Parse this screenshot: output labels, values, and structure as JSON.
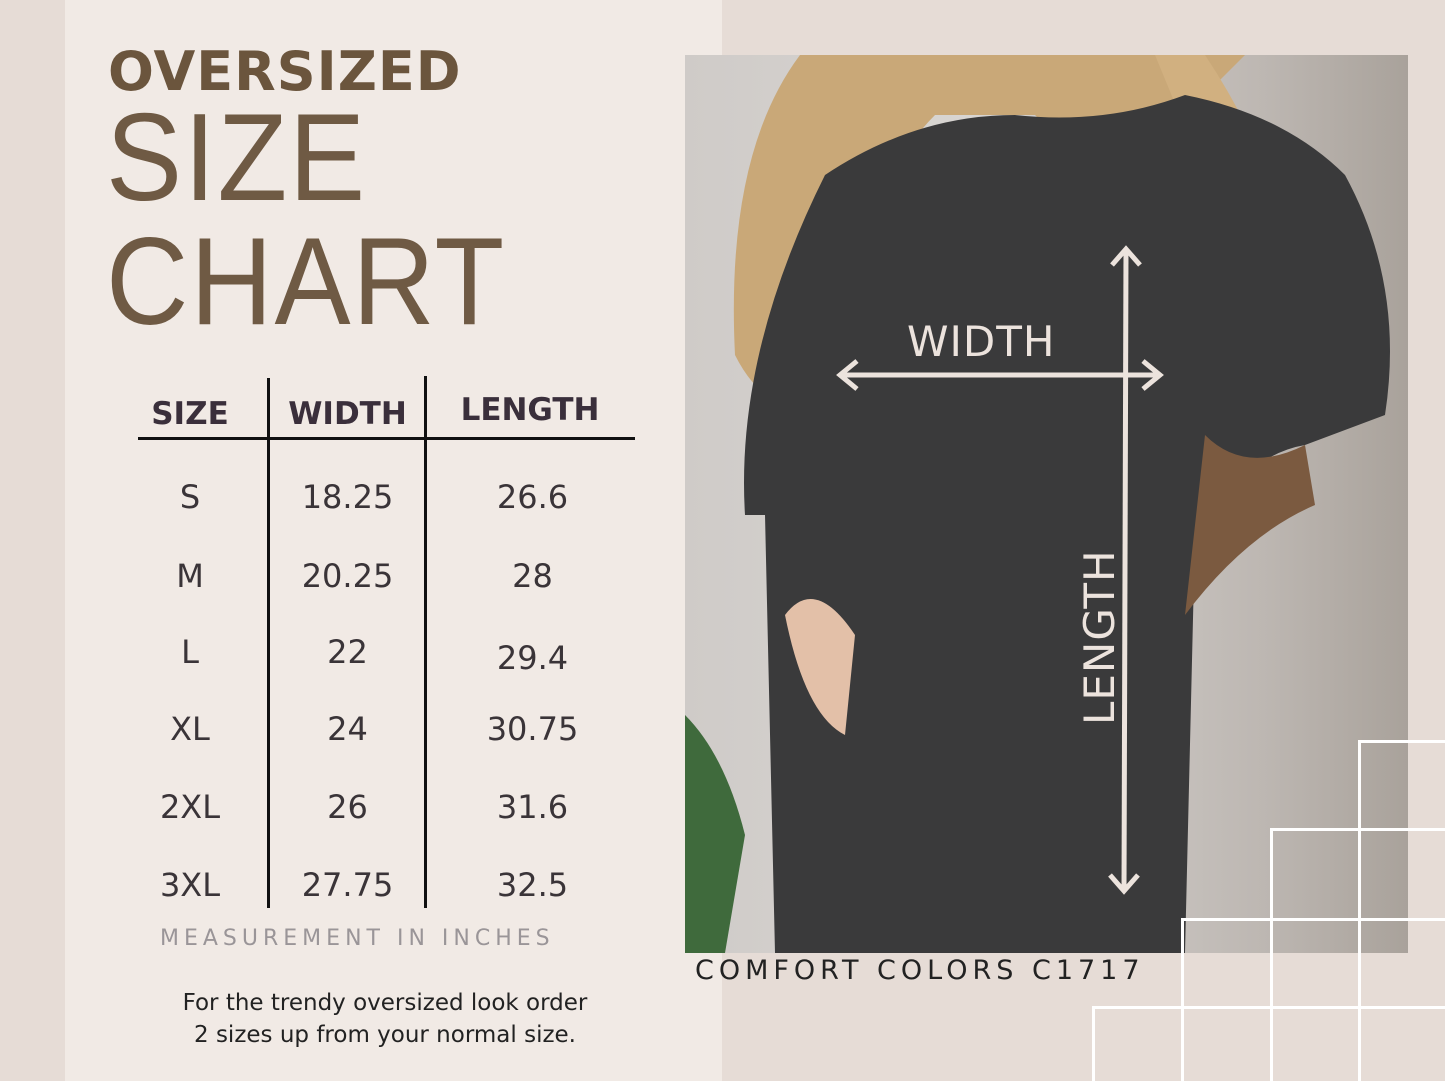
{
  "heading": {
    "line1": "OVERSIZED",
    "line2": "SIZE",
    "line3": "CHART"
  },
  "table": {
    "headers": [
      "SIZE",
      "WIDTH",
      "LENGTH"
    ],
    "rows": [
      [
        "S",
        "18.25",
        "26.6"
      ],
      [
        "M",
        "20.25",
        "28"
      ],
      [
        "L",
        "22",
        "29.4"
      ],
      [
        "XL",
        "24",
        "30.75"
      ],
      [
        "2XL",
        "26",
        "31.6"
      ],
      [
        "3XL",
        "27.75",
        "32.5"
      ]
    ]
  },
  "units_note": "MEASUREMENT IN INCHES",
  "advice": {
    "line1": "For the trendy oversized look order",
    "line2": "2 sizes up from your normal size."
  },
  "photo": {
    "width_label": "WIDTH",
    "length_label": "LENGTH"
  },
  "brand": "COMFORT COLORS C1717",
  "colors": {
    "heading": "#6b553d",
    "panel": "#f1eae5",
    "background": "#e6dcd6",
    "table_text": "#3a2f3b"
  }
}
